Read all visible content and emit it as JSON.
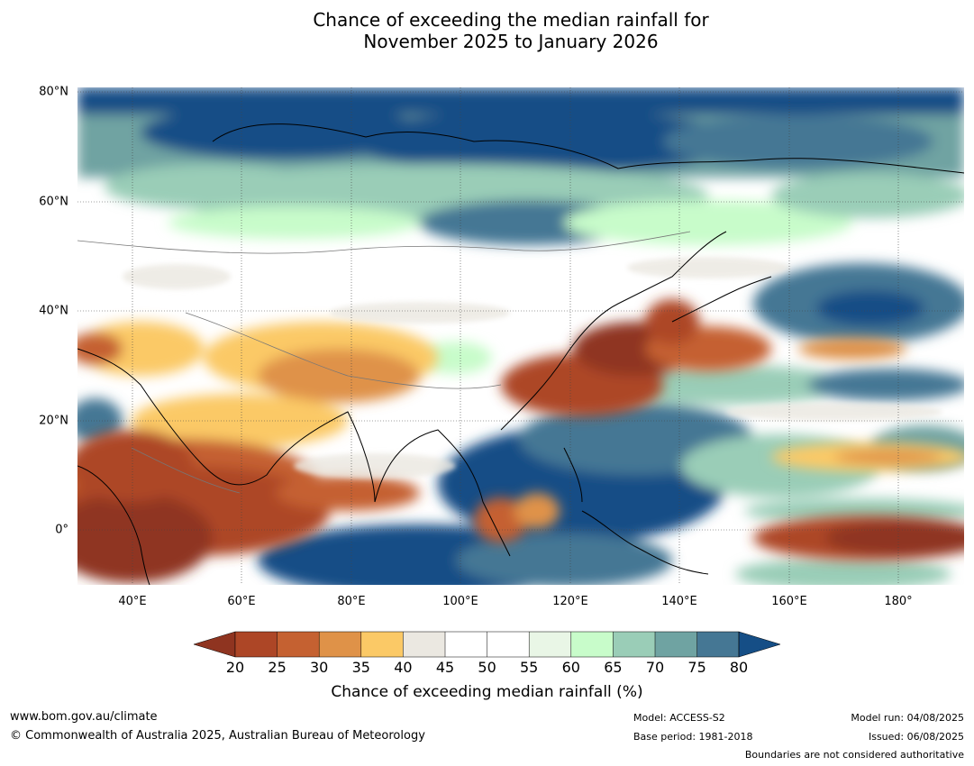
{
  "title_line1": "Chance of exceeding the median rainfall for",
  "title_line2": "November 2025 to January 2026",
  "map": {
    "lon_range": [
      30,
      192
    ],
    "lat_range": [
      -10,
      81
    ],
    "lat_labels": [
      {
        "lat": 80,
        "text": "80°N"
      },
      {
        "lat": 60,
        "text": "60°N"
      },
      {
        "lat": 40,
        "text": "40°N"
      },
      {
        "lat": 20,
        "text": "20°N"
      },
      {
        "lat": 0,
        "text": "0°"
      }
    ],
    "lon_labels": [
      {
        "lon": 40,
        "text": "40°E"
      },
      {
        "lon": 60,
        "text": "60°E"
      },
      {
        "lon": 80,
        "text": "80°E"
      },
      {
        "lon": 100,
        "text": "100°E"
      },
      {
        "lon": 120,
        "text": "120°E"
      },
      {
        "lon": 140,
        "text": "140°E"
      },
      {
        "lon": 160,
        "text": "160°E"
      },
      {
        "lon": 180,
        "text": "180°"
      }
    ]
  },
  "colorbar": {
    "ticks": [
      "20",
      "25",
      "30",
      "35",
      "40",
      "45",
      "50",
      "55",
      "60",
      "65",
      "70",
      "75",
      "80"
    ],
    "colors": {
      "below20": "#8f3420",
      "20-25": "#ad4626",
      "25-30": "#c56131",
      "30-35": "#df9248",
      "35-40": "#fbc966",
      "40-45": "#ebe8e1",
      "45-50": "#ffffff",
      "50-55": "#ffffff",
      "55-60": "#e9f6e6",
      "60-65": "#c8fcca",
      "65-70": "#9acdb7",
      "70-75": "#6fa3a2",
      "75-80": "#457794",
      "above80": "#154e86"
    },
    "label": "Chance of exceeding median rainfall (%)"
  },
  "footer": {
    "website": "www.bom.gov.au/climate",
    "copyright": "© Commonwealth of Australia 2025, Australian Bureau of Meteorology",
    "model": "Model: ACCESS-S2",
    "base_period": "Base period: 1981-2018",
    "model_run": "Model run: 04/08/2025",
    "issued": "Issued: 06/08/2025",
    "disclaimer": "Boundaries are not considered authoritative"
  }
}
